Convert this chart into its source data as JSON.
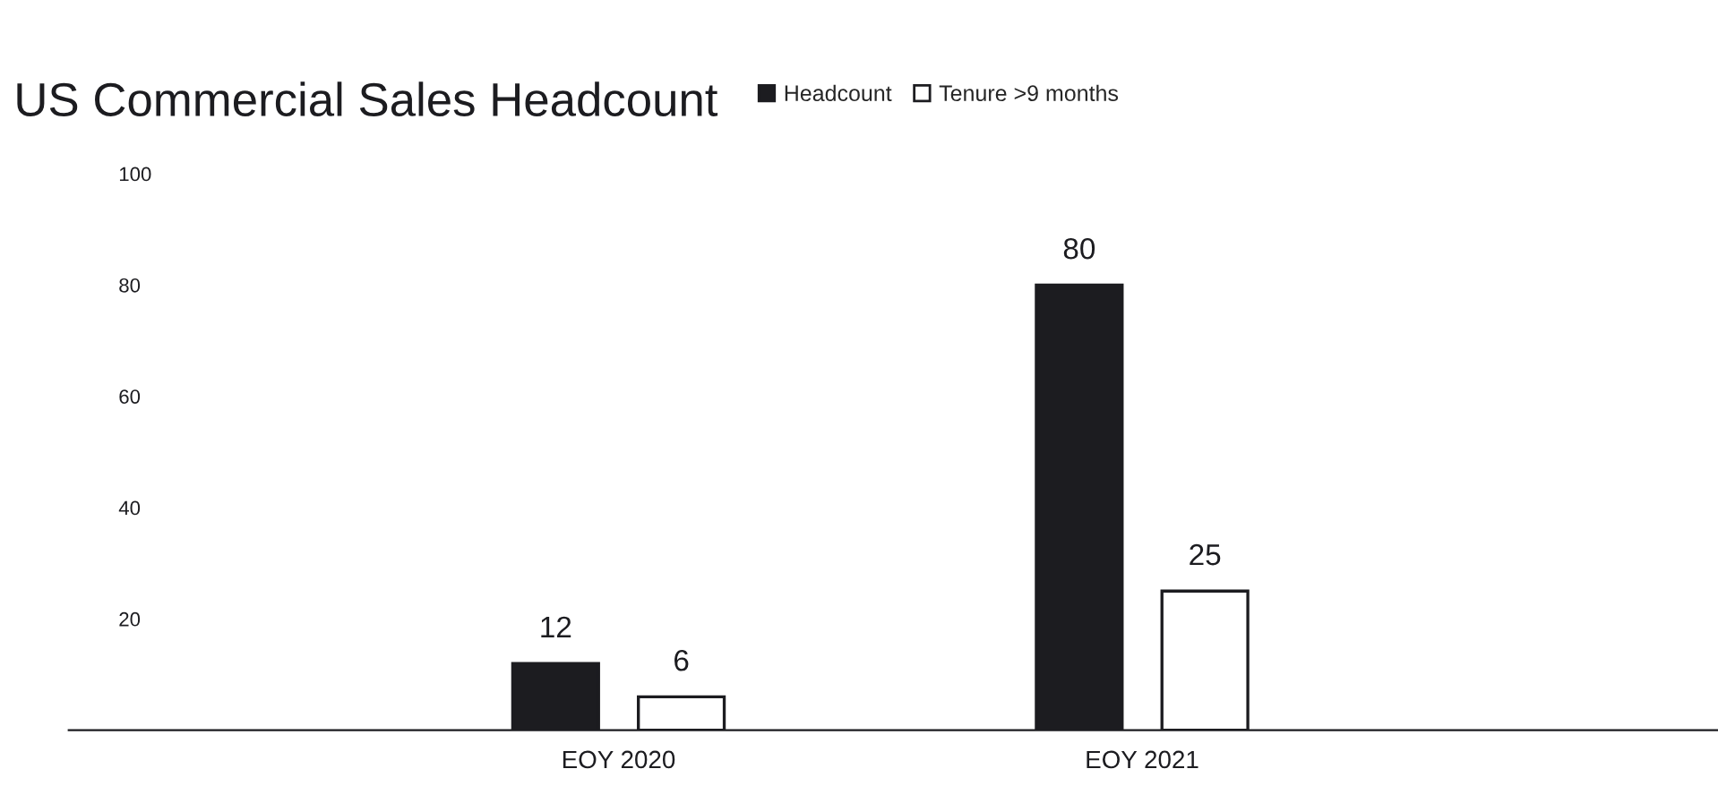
{
  "chart_data": {
    "type": "bar",
    "title": "US Commercial Sales Headcount",
    "categories": [
      "EOY 2020",
      "EOY 2021"
    ],
    "series": [
      {
        "name": "Headcount",
        "color": "#1c1c20",
        "values": [
          12,
          80
        ]
      },
      {
        "name": "Tenure >9 months",
        "color": "#ffffff",
        "values": [
          6,
          25
        ]
      }
    ],
    "ylim": [
      0,
      100
    ],
    "yticks": [
      20,
      40,
      60,
      80,
      100
    ],
    "grid": false,
    "legend": "top left",
    "data_labels": true
  }
}
